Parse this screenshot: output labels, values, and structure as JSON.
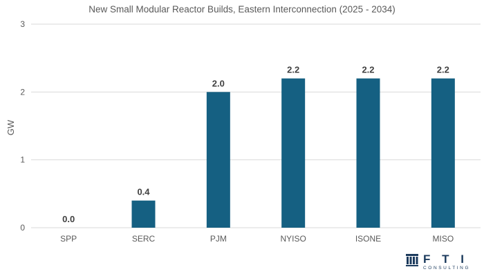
{
  "chart_data": {
    "type": "bar",
    "title": "New Small Modular Reactor Builds, Eastern Interconnection (2025 - 2034)",
    "xlabel": "",
    "ylabel": "GW",
    "categories": [
      "SPP",
      "SERC",
      "PJM",
      "NYISO",
      "ISONE",
      "MISO"
    ],
    "values": [
      0.0,
      0.4,
      2.0,
      2.2,
      2.2,
      2.2
    ],
    "data_labels": [
      "0.0",
      "0.4",
      "2.0",
      "2.2",
      "2.2",
      "2.2"
    ],
    "ylim": [
      0,
      3
    ],
    "yticks": [
      "0",
      "1",
      "2",
      "3"
    ],
    "grid": true,
    "bar_color": "#156082",
    "legend": "none"
  },
  "logo": {
    "brand": "F T I",
    "tagline": "CONSULTING",
    "icon": "fti-columns-icon"
  }
}
